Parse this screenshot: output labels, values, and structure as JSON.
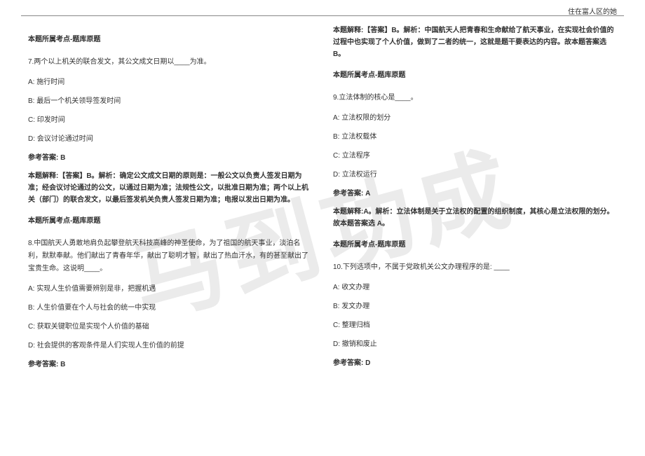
{
  "header": {
    "right_text": "住在富人区的她"
  },
  "watermark": "马到功成",
  "left_column": {
    "tag1": "本题所属考点-题库原题",
    "q7": {
      "text": "7.两个以上机关的联合发文，其公文成文日期以____为准。",
      "optA": "A: 施行时间",
      "optB": "B: 最后一个机关领导签发时间",
      "optC": "C: 印发时间",
      "optD": "D: 会议讨论通过时间",
      "answer_label": "参考答案: B",
      "explain": "本题解释:【答案】B。解析：确定公文成文日期的原则是：一般公文以负责人签发日期为准；经会议讨论通过的公文，以通过日期为准；法规性公文，以批准日期为准；两个以上机关（部门）的联合发文，以最后签发机关负责人签发日期为准；电报以发出日期为准。"
    },
    "tag2": "本题所属考点-题库原题",
    "q8": {
      "text": "8.中国航天人勇敢地肩负起攀登航天科技高峰的神圣使命，为了祖国的航天事业，淡泊名利，默默奉献。他们献出了青春年华，献出了聪明才智，献出了热血汗水，有的甚至献出了宝贵生命。这说明____。",
      "optA": "A: 实现人生价值需要辨别是非，把握机遇",
      "optB": "B: 人生价值要在个人与社会的统一中实现",
      "optC": "C: 获取关键职位是实现个人价值的基础",
      "optD": "D: 社会提供的客观条件是人们实现人生价值的前提",
      "answer_label": "参考答案: B"
    }
  },
  "right_column": {
    "explain_top": "本题解释:【答案】B。解析：中国航天人把青春和生命献给了航天事业，在实现社会价值的过程中也实现了个人价值，做到了二者的统一，这就是题干要表达的内容。故本题答案选 B。",
    "tag1": "本题所属考点-题库原题",
    "q9": {
      "text": "9.立法体制的核心是____。",
      "optA": "A: 立法权限的划分",
      "optB": "B: 立法权载体",
      "optC": "C: 立法程序",
      "optD": "D: 立法权运行",
      "answer_label": "参考答案: A",
      "explain": "本题解释:A。解析：立法体制是关于立法权的配置的组织制度，其核心是立法权限的划分。故本题答案选 A。"
    },
    "tag2": "本题所属考点-题库原题",
    "q10": {
      "text": "10.下列选项中，不属于党政机关公文办理程序的是: ____",
      "optA": "A: 收文办理",
      "optB": "B: 发文办理",
      "optC": "C: 整理归档",
      "optD": "D: 撤销和废止",
      "answer_label": "参考答案: D"
    }
  }
}
